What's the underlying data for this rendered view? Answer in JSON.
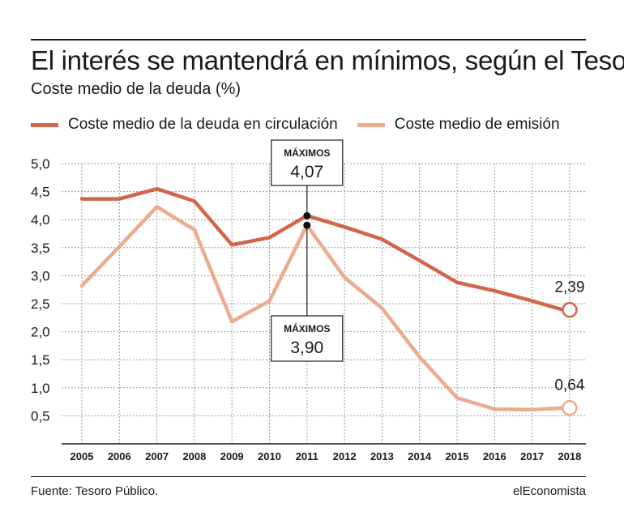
{
  "title": "El interés se mantendrá en mínimos, según el Tesoro",
  "subtitle": "Coste medio de la deuda (%)",
  "legend": [
    {
      "label": "Coste medio de la deuda en circulación",
      "color": "#d2654a"
    },
    {
      "label": "Coste medio de emisión",
      "color": "#eeaa8c"
    }
  ],
  "source": "Fuente: Tesoro Público.",
  "brand": "elEconomista",
  "chart_data": {
    "type": "line",
    "x": [
      "2005",
      "2006",
      "2007",
      "2008",
      "2009",
      "2010",
      "2011",
      "2012",
      "2013",
      "2014",
      "2015",
      "2016",
      "2017",
      "2018"
    ],
    "series": [
      {
        "name": "Coste medio de la deuda en circulación",
        "color": "#d2654a",
        "values": [
          4.37,
          4.37,
          4.55,
          4.33,
          3.55,
          3.68,
          4.07,
          3.87,
          3.65,
          3.27,
          2.88,
          2.73,
          2.55,
          2.39
        ]
      },
      {
        "name": "Coste medio de emisión",
        "color": "#eeaa8c",
        "values": [
          2.82,
          3.52,
          4.23,
          3.82,
          2.18,
          2.55,
          3.9,
          2.97,
          2.42,
          1.55,
          0.82,
          0.62,
          0.61,
          0.64
        ]
      }
    ],
    "y_ticks": [
      "5,0",
      "4,5",
      "4,0",
      "3,5",
      "3,0",
      "2,5",
      "2,0",
      "1,5",
      "1,0",
      "0,5"
    ],
    "ylim": [
      0,
      5.0
    ],
    "grid": true,
    "annotations": [
      {
        "label": "MÁXIMOS",
        "value": "4,07",
        "x": "2011",
        "y": 4.07,
        "series": 0,
        "placement": "above"
      },
      {
        "label": "MÁXIMOS",
        "value": "3,90",
        "x": "2011",
        "y": 3.9,
        "series": 1,
        "placement": "below"
      }
    ],
    "end_labels": [
      "2,39",
      "0,64"
    ]
  }
}
